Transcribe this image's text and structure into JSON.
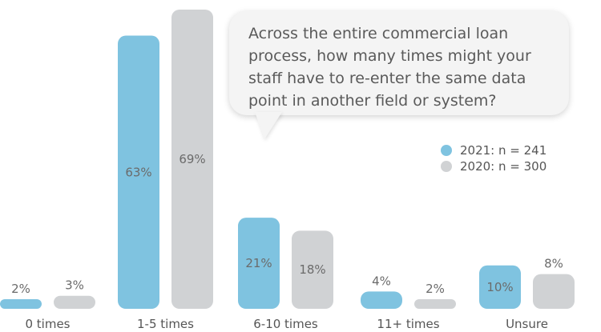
{
  "question": "Across the entire commercial loan process, how many times might your staff have to re-enter the same data point in another field or system?",
  "legend": [
    {
      "label": "2021: n = 241",
      "color": "#7fc3e0"
    },
    {
      "label": "2020: n = 300",
      "color": "#d0d2d4"
    }
  ],
  "chart_data": {
    "type": "bar",
    "categories": [
      "0 times",
      "1-5 times",
      "6-10 times",
      "11+ times",
      "Unsure"
    ],
    "series": [
      {
        "name": "2021: n = 241",
        "values": [
          2,
          63,
          21,
          4,
          10
        ],
        "labels": [
          "2%",
          "63%",
          "21%",
          "4%",
          "10%"
        ],
        "color": "#7fc3e0"
      },
      {
        "name": "2020: n = 300",
        "values": [
          3,
          69,
          18,
          2,
          8
        ],
        "labels": [
          "3%",
          "69%",
          "18%",
          "2%",
          "8%"
        ],
        "color": "#d0d2d4"
      }
    ],
    "ylim": [
      0,
      69
    ],
    "grid": false,
    "legend_position": "right"
  }
}
